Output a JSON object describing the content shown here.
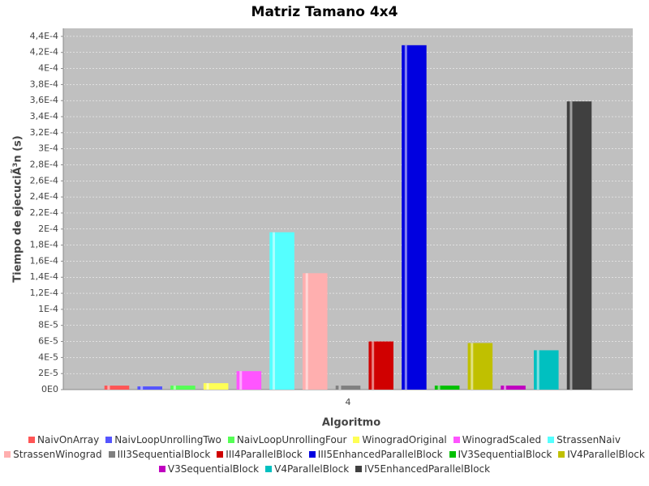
{
  "chart_data": {
    "type": "bar",
    "title": "Matriz Tamano 4x4",
    "x_label": "Algoritmo",
    "y_label": "Tiempo de ejecuciÃ³n (s)",
    "categories": [
      "4"
    ],
    "ylim": [
      0,
      0.00045
    ],
    "yticks": [
      {
        "value": 0,
        "label": "0E0"
      },
      {
        "value": 2e-05,
        "label": "2E-5"
      },
      {
        "value": 4e-05,
        "label": "4E-5"
      },
      {
        "value": 6e-05,
        "label": "6E-5"
      },
      {
        "value": 8e-05,
        "label": "8E-5"
      },
      {
        "value": 0.0001,
        "label": "1E-4"
      },
      {
        "value": 0.00012,
        "label": "1,2E-4"
      },
      {
        "value": 0.00014,
        "label": "1,4E-4"
      },
      {
        "value": 0.00016,
        "label": "1,6E-4"
      },
      {
        "value": 0.00018,
        "label": "1,8E-4"
      },
      {
        "value": 0.0002,
        "label": "2E-4"
      },
      {
        "value": 0.00022,
        "label": "2,2E-4"
      },
      {
        "value": 0.00024,
        "label": "2,4E-4"
      },
      {
        "value": 0.00026,
        "label": "2,6E-4"
      },
      {
        "value": 0.00028,
        "label": "2,8E-4"
      },
      {
        "value": 0.0003,
        "label": "3E-4"
      },
      {
        "value": 0.00032,
        "label": "3,2E-4"
      },
      {
        "value": 0.00034,
        "label": "3,4E-4"
      },
      {
        "value": 0.00036,
        "label": "3,6E-4"
      },
      {
        "value": 0.00038,
        "label": "3,8E-4"
      },
      {
        "value": 0.0004,
        "label": "4E-4"
      },
      {
        "value": 0.00042,
        "label": "4,2E-4"
      },
      {
        "value": 0.00044,
        "label": "4,4E-4"
      }
    ],
    "grid": true,
    "series": [
      {
        "name": "NaivOnArray",
        "color": "#ff5555",
        "values": [
          5e-06
        ]
      },
      {
        "name": "NaivLoopUnrollingTwo",
        "color": "#5555ff",
        "values": [
          4e-06
        ]
      },
      {
        "name": "NaivLoopUnrollingFour",
        "color": "#55ff55",
        "values": [
          5e-06
        ]
      },
      {
        "name": "WinogradOriginal",
        "color": "#ffff55",
        "values": [
          8e-06
        ]
      },
      {
        "name": "WinogradScaled",
        "color": "#ff55ff",
        "values": [
          2.3e-05
        ]
      },
      {
        "name": "StrassenNaiv",
        "color": "#55ffff",
        "values": [
          0.000196
        ]
      },
      {
        "name": "StrassenWinograd",
        "color": "#ffafaf",
        "values": [
          0.000145
        ]
      },
      {
        "name": "III3SequentialBlock",
        "color": "#808080",
        "values": [
          5e-06
        ]
      },
      {
        "name": "III4ParallelBlock",
        "color": "#d00000",
        "values": [
          6e-05
        ]
      },
      {
        "name": "III5EnhancedParallelBlock",
        "color": "#0000e0",
        "values": [
          0.000429
        ]
      },
      {
        "name": "IV3SequentialBlock",
        "color": "#00c000",
        "values": [
          5e-06
        ]
      },
      {
        "name": "IV4ParallelBlock",
        "color": "#c0c000",
        "values": [
          5.8e-05
        ]
      },
      {
        "name": "V3SequentialBlock",
        "color": "#c000c0",
        "values": [
          5e-06
        ]
      },
      {
        "name": "V4ParallelBlock",
        "color": "#00c0c0",
        "values": [
          4.9e-05
        ]
      },
      {
        "name": "IV5EnhancedParallelBlock",
        "color": "#404040",
        "values": [
          0.000359
        ]
      }
    ]
  }
}
